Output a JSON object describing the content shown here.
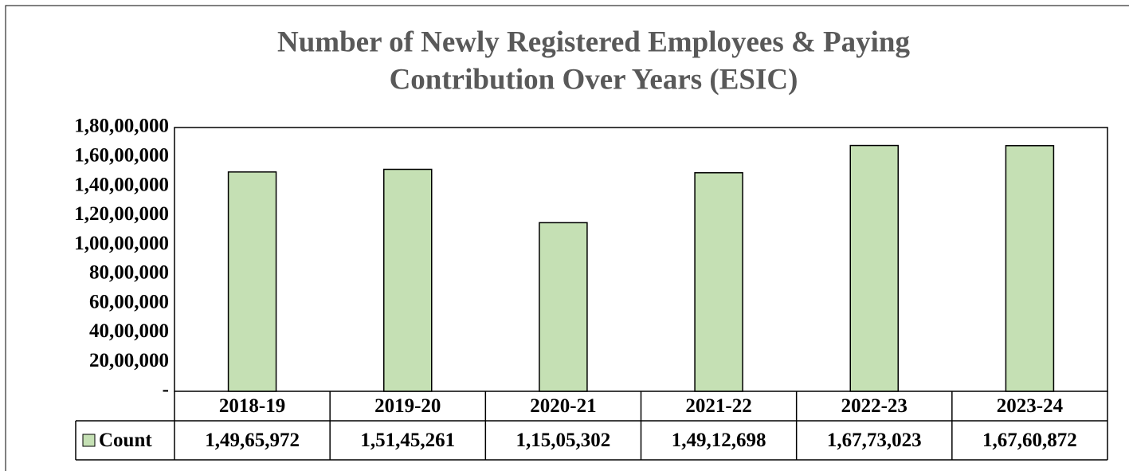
{
  "chart_data": {
    "type": "bar",
    "title": [
      "Number of Newly Registered Employees & Paying",
      "Contribution Over Years  (ESIC)"
    ],
    "categories": [
      "2018-19",
      "2019-20",
      "2020-21",
      "2021-22",
      "2022-23",
      "2023-24"
    ],
    "series": [
      {
        "name": "Count",
        "color": "#c5e0b4",
        "values": [
          14965972,
          15145261,
          11505302,
          14912698,
          16773023,
          16760872
        ],
        "value_labels": [
          "1,49,65,972",
          "1,51,45,261",
          "1,15,05,302",
          "1,49,12,698",
          "1,67,73,023",
          "1,67,60,872"
        ]
      }
    ],
    "ylim": [
      0,
      18000000
    ],
    "yticks": [
      {
        "value": 0,
        "label": "-"
      },
      {
        "value": 2000000,
        "label": "20,00,000"
      },
      {
        "value": 4000000,
        "label": "40,00,000"
      },
      {
        "value": 6000000,
        "label": "60,00,000"
      },
      {
        "value": 8000000,
        "label": "80,00,000"
      },
      {
        "value": 10000000,
        "label": "1,00,00,000"
      },
      {
        "value": 12000000,
        "label": "1,20,00,000"
      },
      {
        "value": 14000000,
        "label": "1,40,00,000"
      },
      {
        "value": 16000000,
        "label": "1,60,00,000"
      },
      {
        "value": 18000000,
        "label": "1,80,00,000"
      }
    ],
    "grid": false
  }
}
